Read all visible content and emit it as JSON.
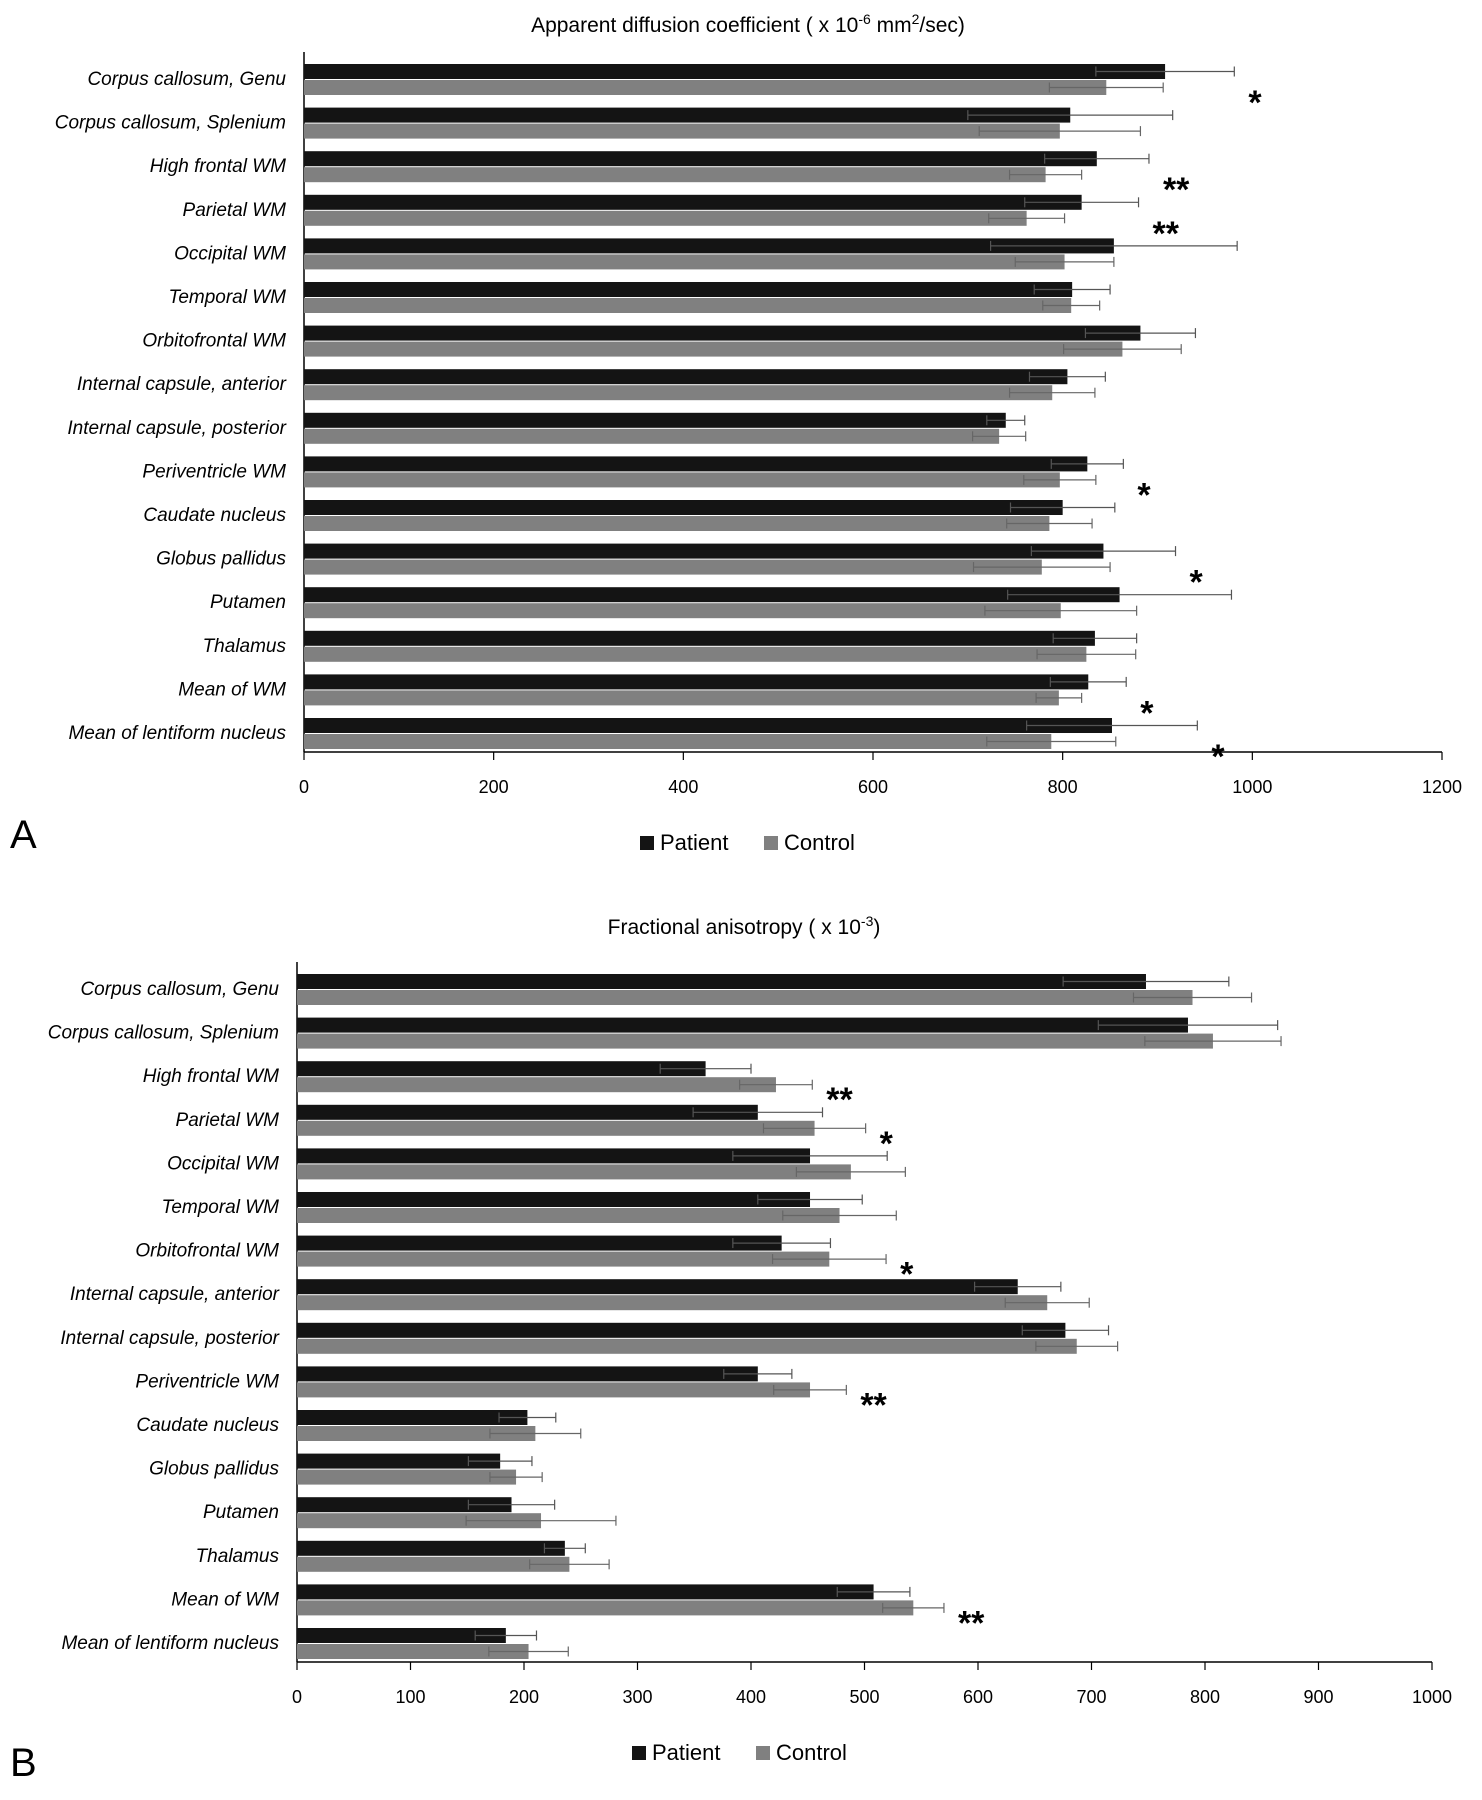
{
  "chart_data": [
    {
      "type": "bar",
      "orientation": "horizontal",
      "panel_label": "A",
      "title": "Apparent diffusion coefficient ( x 10",
      "title_sup": "-6",
      "title_mid": " mm",
      "title_sup2": "2",
      "title_end": "/sec)",
      "categories": [
        "Corpus callosum, Genu",
        "Corpus callosum, Splenium",
        "High frontal WM",
        "Parietal WM",
        "Occipital WM",
        "Temporal WM",
        "Orbitofrontal WM",
        "Internal capsule, anterior",
        "Internal capsule, posterior",
        "Periventricle WM",
        "Caudate nucleus",
        "Globus pallidus",
        "Putamen",
        "Thalamus",
        "Mean of  WM",
        "Mean of lentiform nucleus"
      ],
      "series": [
        {
          "name": "Patient",
          "color": "#141414",
          "values": [
            908,
            808,
            836,
            820,
            854,
            810,
            882,
            805,
            740,
            826,
            800,
            843,
            860,
            834,
            827,
            852
          ],
          "errors": [
            73,
            108,
            55,
            60,
            130,
            40,
            58,
            40,
            20,
            38,
            55,
            76,
            118,
            44,
            40,
            90
          ]
        },
        {
          "name": "Control",
          "color": "#808080",
          "values": [
            846,
            797,
            782,
            762,
            802,
            809,
            863,
            789,
            733,
            797,
            786,
            778,
            798,
            825,
            796,
            788
          ],
          "errors": [
            60,
            85,
            38,
            40,
            52,
            30,
            62,
            45,
            28,
            38,
            45,
            72,
            80,
            52,
            24,
            68
          ]
        }
      ],
      "significance": [
        "*",
        "",
        "**",
        "**",
        "",
        "",
        "",
        "",
        "",
        "*",
        "",
        "*",
        "",
        "",
        "*",
        "*"
      ],
      "xlim": [
        0,
        1200
      ],
      "xticks": [
        0,
        200,
        400,
        600,
        800,
        1000,
        1200
      ],
      "legend": {
        "position": "bottom",
        "patient": "Patient",
        "control": "Control"
      }
    },
    {
      "type": "bar",
      "orientation": "horizontal",
      "panel_label": "B",
      "title": "Fractional anisotropy ( x 10",
      "title_sup": "-3",
      "title_end": ")",
      "categories": [
        "Corpus callosum, Genu",
        "Corpus callosum, Splenium",
        "High frontal WM",
        "Parietal WM",
        "Occipital WM",
        "Temporal WM",
        "Orbitofrontal WM",
        "Internal capsule, anterior",
        "Internal capsule, posterior",
        "Periventricle WM",
        "Caudate nucleus",
        "Globus pallidus",
        "Putamen",
        "Thalamus",
        "Mean of WM",
        "Mean of lentiform nucleus"
      ],
      "series": [
        {
          "name": "Patient",
          "color": "#141414",
          "values": [
            748,
            785,
            360,
            406,
            452,
            452,
            427,
            635,
            677,
            406,
            203,
            179,
            189,
            236,
            508,
            184
          ],
          "errors": [
            73,
            79,
            40,
            57,
            68,
            46,
            43,
            38,
            38,
            30,
            25,
            28,
            38,
            18,
            32,
            27
          ]
        },
        {
          "name": "Control",
          "color": "#808080",
          "values": [
            789,
            807,
            422,
            456,
            488,
            478,
            469,
            661,
            687,
            452,
            210,
            193,
            215,
            240,
            543,
            204
          ],
          "errors": [
            52,
            60,
            32,
            45,
            48,
            50,
            50,
            37,
            36,
            32,
            40,
            23,
            66,
            35,
            27,
            35
          ]
        }
      ],
      "significance": [
        "",
        "",
        "**",
        "*",
        "",
        "",
        "*",
        "",
        "",
        "**",
        "",
        "",
        "",
        "",
        "**",
        ""
      ],
      "xlim": [
        0,
        1000
      ],
      "xticks": [
        0,
        100,
        200,
        300,
        400,
        500,
        600,
        700,
        800,
        900,
        1000
      ],
      "legend": {
        "position": "bottom",
        "patient": "Patient",
        "control": "Control"
      }
    }
  ]
}
